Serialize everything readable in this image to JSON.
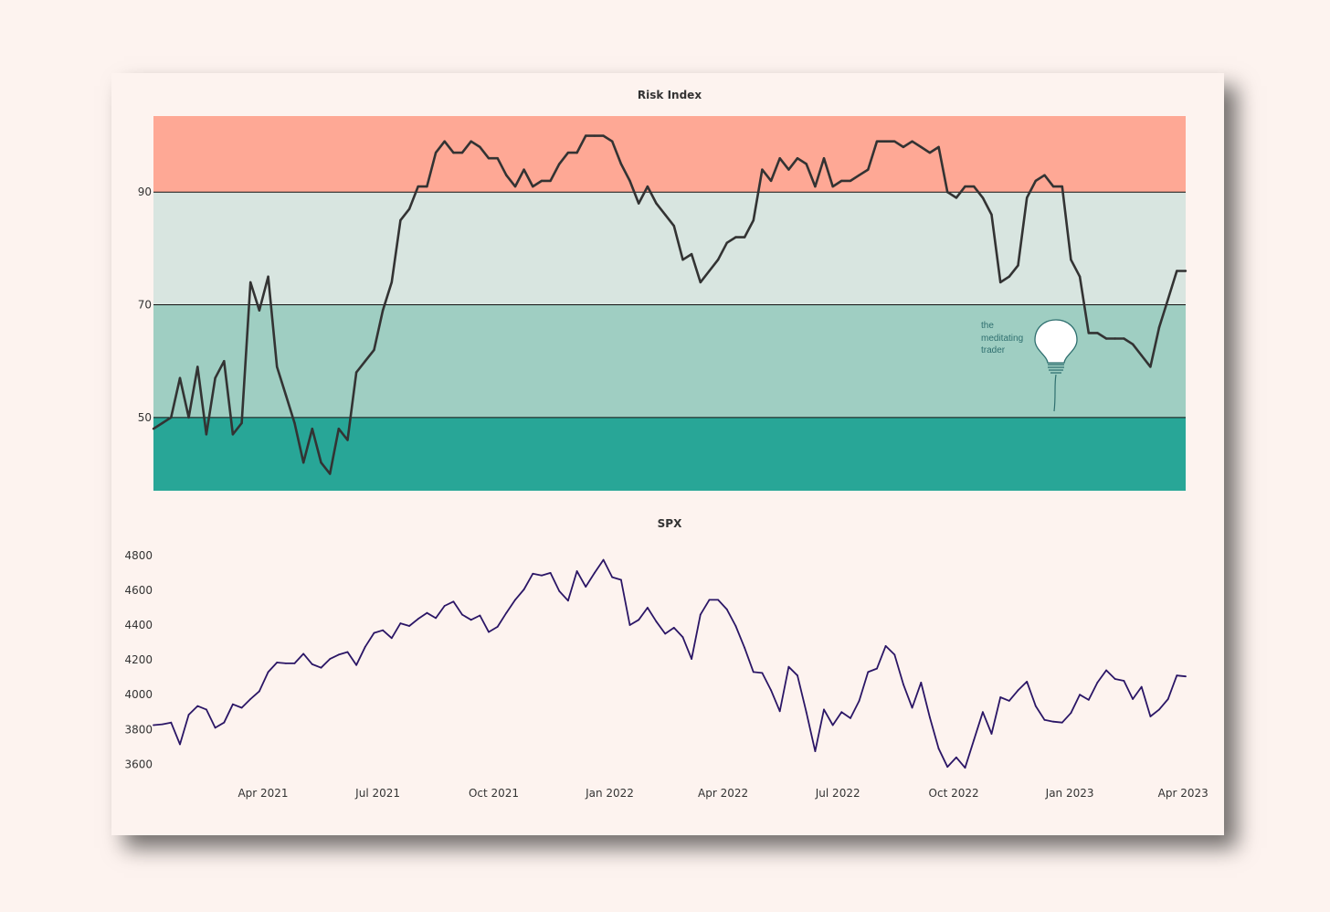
{
  "chart_data": [
    {
      "type": "line",
      "title": "Risk Index",
      "ylim": [
        37,
        103.5
      ],
      "yticks": [
        50,
        70,
        90
      ],
      "bands": [
        {
          "from": 90,
          "to": 103.5,
          "color": "#fea895"
        },
        {
          "from": 70,
          "to": 90,
          "color": "#d8e5e0"
        },
        {
          "from": 50,
          "to": 70,
          "color": "#9fcec2"
        },
        {
          "from": 37,
          "to": 50,
          "color": "#28a697"
        }
      ],
      "grid": false,
      "line_color": "#333333",
      "x": [
        "2021-01-04",
        "2021-01-11",
        "2021-01-18",
        "2021-01-25",
        "2021-02-01",
        "2021-02-08",
        "2021-02-15",
        "2021-02-22",
        "2021-03-01",
        "2021-03-08",
        "2021-03-15",
        "2021-03-22",
        "2021-03-29",
        "2021-04-05",
        "2021-04-12",
        "2021-04-19",
        "2021-04-26",
        "2021-05-03",
        "2021-05-10",
        "2021-05-17",
        "2021-05-24",
        "2021-05-31",
        "2021-06-07",
        "2021-06-14",
        "2021-06-21",
        "2021-06-28",
        "2021-07-05",
        "2021-07-12",
        "2021-07-19",
        "2021-07-26",
        "2021-08-02",
        "2021-08-09",
        "2021-08-16",
        "2021-08-23",
        "2021-08-30",
        "2021-09-06",
        "2021-09-13",
        "2021-09-20",
        "2021-09-27",
        "2021-10-04",
        "2021-10-11",
        "2021-10-18",
        "2021-10-25",
        "2021-11-01",
        "2021-11-08",
        "2021-11-15",
        "2021-11-22",
        "2021-11-29",
        "2021-12-06",
        "2021-12-13",
        "2021-12-20",
        "2021-12-27",
        "2022-01-03",
        "2022-01-10",
        "2022-01-17",
        "2022-01-24",
        "2022-01-31",
        "2022-02-07",
        "2022-02-14",
        "2022-02-21",
        "2022-02-28",
        "2022-03-07",
        "2022-03-14",
        "2022-03-21",
        "2022-03-28",
        "2022-04-04",
        "2022-04-11",
        "2022-04-18",
        "2022-04-25",
        "2022-05-02",
        "2022-05-09",
        "2022-05-16",
        "2022-05-23",
        "2022-05-30",
        "2022-06-06",
        "2022-06-13",
        "2022-06-20",
        "2022-06-27",
        "2022-07-04",
        "2022-07-11",
        "2022-07-18",
        "2022-07-25",
        "2022-08-01",
        "2022-08-08",
        "2022-08-15",
        "2022-08-22",
        "2022-08-29",
        "2022-09-05",
        "2022-09-12",
        "2022-09-19",
        "2022-09-26",
        "2022-10-03",
        "2022-10-10",
        "2022-10-17",
        "2022-10-24",
        "2022-10-31",
        "2022-11-07",
        "2022-11-14",
        "2022-11-21",
        "2022-11-28",
        "2022-12-05",
        "2022-12-12",
        "2022-12-19",
        "2022-12-26",
        "2023-01-02",
        "2023-01-09",
        "2023-01-16",
        "2023-01-23",
        "2023-01-30",
        "2023-02-06",
        "2023-02-13",
        "2023-02-20",
        "2023-02-27",
        "2023-03-06",
        "2023-03-13",
        "2023-03-20",
        "2023-03-27",
        "2023-04-03"
      ],
      "values": [
        48,
        49,
        50,
        57,
        50,
        59,
        47,
        57,
        60,
        47,
        49,
        74,
        69,
        75,
        59,
        54,
        49,
        42,
        48,
        42,
        40,
        48,
        46,
        58,
        60,
        62,
        69,
        74,
        85,
        87,
        91,
        91,
        97,
        99,
        97,
        97,
        99,
        98,
        96,
        96,
        93,
        91,
        94,
        91,
        92,
        92,
        95,
        97,
        97,
        100,
        100,
        100,
        99,
        95,
        92,
        88,
        91,
        88,
        86,
        84,
        78,
        79,
        74,
        76,
        78,
        81,
        82,
        82,
        85,
        94,
        92,
        96,
        94,
        96,
        95,
        91,
        96,
        91,
        92,
        92,
        93,
        94,
        99,
        99,
        99,
        98,
        99,
        98,
        97,
        98,
        90,
        89,
        91,
        91,
        89,
        86,
        74,
        75,
        77,
        89,
        92,
        93,
        91,
        91,
        78,
        75,
        65,
        65,
        64,
        64,
        64,
        63,
        61,
        59,
        66,
        71,
        76,
        76
      ]
    },
    {
      "type": "line",
      "title": "SPX",
      "ylim": [
        3560,
        4820
      ],
      "yticks": [
        3600,
        3800,
        4000,
        4200,
        4400,
        4600,
        4800
      ],
      "xticks": [
        "Apr 2021",
        "Jul 2021",
        "Oct 2021",
        "Jan 2022",
        "Apr 2022",
        "Jul 2022",
        "Oct 2022",
        "Jan 2023",
        "Apr 2023"
      ],
      "grid": false,
      "line_color": "#2b1666",
      "x": [
        "2021-01-04",
        "2021-01-11",
        "2021-01-18",
        "2021-01-25",
        "2021-02-01",
        "2021-02-08",
        "2021-02-15",
        "2021-02-22",
        "2021-03-01",
        "2021-03-08",
        "2021-03-15",
        "2021-03-22",
        "2021-03-29",
        "2021-04-05",
        "2021-04-12",
        "2021-04-19",
        "2021-04-26",
        "2021-05-03",
        "2021-05-10",
        "2021-05-17",
        "2021-05-24",
        "2021-05-31",
        "2021-06-07",
        "2021-06-14",
        "2021-06-21",
        "2021-06-28",
        "2021-07-05",
        "2021-07-12",
        "2021-07-19",
        "2021-07-26",
        "2021-08-02",
        "2021-08-09",
        "2021-08-16",
        "2021-08-23",
        "2021-08-30",
        "2021-09-06",
        "2021-09-13",
        "2021-09-20",
        "2021-09-27",
        "2021-10-04",
        "2021-10-11",
        "2021-10-18",
        "2021-10-25",
        "2021-11-01",
        "2021-11-08",
        "2021-11-15",
        "2021-11-22",
        "2021-11-29",
        "2021-12-06",
        "2021-12-13",
        "2021-12-20",
        "2021-12-27",
        "2022-01-03",
        "2022-01-10",
        "2022-01-17",
        "2022-01-24",
        "2022-01-31",
        "2022-02-07",
        "2022-02-14",
        "2022-02-21",
        "2022-02-28",
        "2022-03-07",
        "2022-03-14",
        "2022-03-21",
        "2022-03-28",
        "2022-04-04",
        "2022-04-11",
        "2022-04-18",
        "2022-04-25",
        "2022-05-02",
        "2022-05-09",
        "2022-05-16",
        "2022-05-23",
        "2022-05-30",
        "2022-06-06",
        "2022-06-13",
        "2022-06-20",
        "2022-06-27",
        "2022-07-04",
        "2022-07-11",
        "2022-07-18",
        "2022-07-25",
        "2022-08-01",
        "2022-08-08",
        "2022-08-15",
        "2022-08-22",
        "2022-08-29",
        "2022-09-05",
        "2022-09-12",
        "2022-09-19",
        "2022-09-26",
        "2022-10-03",
        "2022-10-10",
        "2022-10-17",
        "2022-10-24",
        "2022-10-31",
        "2022-11-07",
        "2022-11-14",
        "2022-11-21",
        "2022-11-28",
        "2022-12-05",
        "2022-12-12",
        "2022-12-19",
        "2022-12-26",
        "2023-01-02",
        "2023-01-09",
        "2023-01-16",
        "2023-01-23",
        "2023-01-30",
        "2023-02-06",
        "2023-02-13",
        "2023-02-20",
        "2023-02-27",
        "2023-03-06",
        "2023-03-13",
        "2023-03-20",
        "2023-03-27",
        "2023-04-03"
      ],
      "values": [
        3825,
        3830,
        3840,
        3715,
        3885,
        3935,
        3915,
        3810,
        3840,
        3945,
        3925,
        3975,
        4020,
        4130,
        4185,
        4180,
        4180,
        4235,
        4175,
        4155,
        4205,
        4230,
        4245,
        4170,
        4275,
        4355,
        4370,
        4325,
        4410,
        4395,
        4435,
        4470,
        4440,
        4510,
        4535,
        4460,
        4430,
        4455,
        4360,
        4390,
        4470,
        4545,
        4605,
        4695,
        4685,
        4700,
        4595,
        4540,
        4710,
        4620,
        4700,
        4775,
        4675,
        4660,
        4400,
        4430,
        4500,
        4420,
        4350,
        4385,
        4330,
        4205,
        4460,
        4545,
        4545,
        4490,
        4395,
        4270,
        4130,
        4125,
        4025,
        3905,
        4160,
        4110,
        3900,
        3675,
        3915,
        3825,
        3900,
        3865,
        3965,
        4130,
        4150,
        4280,
        4230,
        4060,
        3925,
        4070,
        3870,
        3690,
        3585,
        3640,
        3580,
        3740,
        3900,
        3775,
        3985,
        3965,
        4025,
        4075,
        3935,
        3855,
        3845,
        3840,
        3895,
        4000,
        3970,
        4070,
        4140,
        4090,
        4080,
        3975,
        4045,
        3875,
        3915,
        3975,
        4110,
        4105
      ]
    }
  ],
  "logo": {
    "lines": [
      "the",
      "meditating",
      "trader"
    ]
  }
}
